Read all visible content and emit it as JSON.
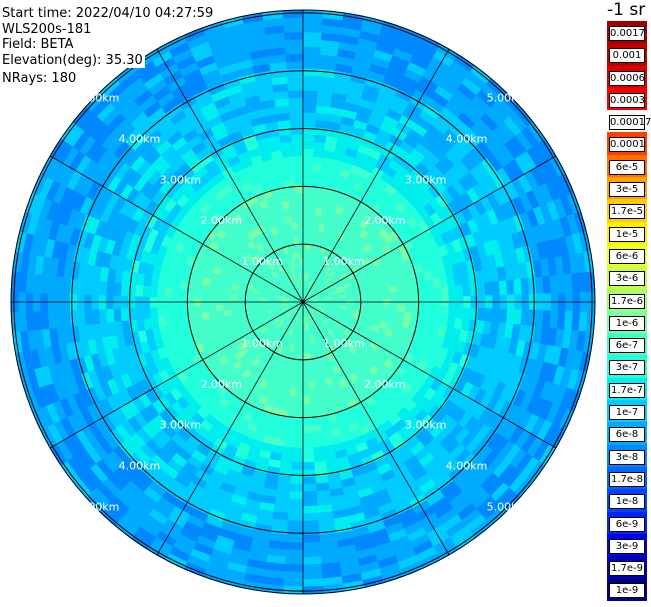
{
  "info": {
    "start_time": "Start time: 2022/04/10 04:27:59",
    "instrument": "WLS200s-181",
    "field": "Field: BETA",
    "elevation": "Elevation(deg): 35.30",
    "nrays": "NRays: 180"
  },
  "colorbar": {
    "unit": "-1 sr",
    "levels": [
      {
        "label": "0.0017",
        "color": "#a00000"
      },
      {
        "label": "0.001",
        "color": "#c00000"
      },
      {
        "label": "0.0006",
        "color": "#dd0000"
      },
      {
        "label": "0.0003",
        "color": "#ff0000"
      },
      {
        "label": "0.00017",
        "color": "#ffffff"
      },
      {
        "label": "0.0001",
        "color": "#ff4000"
      },
      {
        "label": "6e-5",
        "color": "#ff7000"
      },
      {
        "label": "3e-5",
        "color": "#ffa000"
      },
      {
        "label": "1.7e-5",
        "color": "#ffcc00"
      },
      {
        "label": "1e-5",
        "color": "#ffee00"
      },
      {
        "label": "6e-6",
        "color": "#eeff22"
      },
      {
        "label": "3e-6",
        "color": "#ccff44"
      },
      {
        "label": "1.7e-6",
        "color": "#aaff66"
      },
      {
        "label": "1e-6",
        "color": "#77ffaa"
      },
      {
        "label": "6e-7",
        "color": "#44ffcc"
      },
      {
        "label": "3e-7",
        "color": "#22ffdd"
      },
      {
        "label": "1.7e-7",
        "color": "#00eeee"
      },
      {
        "label": "1e-7",
        "color": "#00ccff"
      },
      {
        "label": "6e-8",
        "color": "#00aaff"
      },
      {
        "label": "3e-8",
        "color": "#0088ff"
      },
      {
        "label": "1.7e-8",
        "color": "#0066ff"
      },
      {
        "label": "1e-8",
        "color": "#0044ff"
      },
      {
        "label": "6e-9",
        "color": "#0022ff"
      },
      {
        "label": "3e-9",
        "color": "#0000ee"
      },
      {
        "label": "1.7e-9",
        "color": "#0000bb"
      },
      {
        "label": "1e-9",
        "color": "#000088"
      }
    ]
  },
  "chart_data": {
    "type": "heatmap",
    "projection": "polar",
    "range_unit": "km",
    "max_range_km": 5.0,
    "range_rings_km": [
      1.0,
      2.0,
      3.0,
      4.0,
      5.0
    ],
    "ring_labels": [
      "1.00km",
      "2.00km",
      "3.00km",
      "4.00km",
      "5.00km"
    ],
    "spokes_deg": [
      0,
      30,
      60,
      90,
      120,
      150,
      180,
      210,
      240,
      270,
      300,
      330
    ],
    "radial_profile": [
      {
        "range_km": 0.0,
        "value": "6e-7"
      },
      {
        "range_km": 1.0,
        "value": "6e-7"
      },
      {
        "range_km": 2.0,
        "value": "3e-7"
      },
      {
        "range_km": 2.5,
        "value": "1.7e-7"
      },
      {
        "range_km": 3.0,
        "value": "1e-7"
      },
      {
        "range_km": 4.0,
        "value": "6e-8"
      },
      {
        "range_km": 5.0,
        "value": "3e-8"
      }
    ]
  }
}
